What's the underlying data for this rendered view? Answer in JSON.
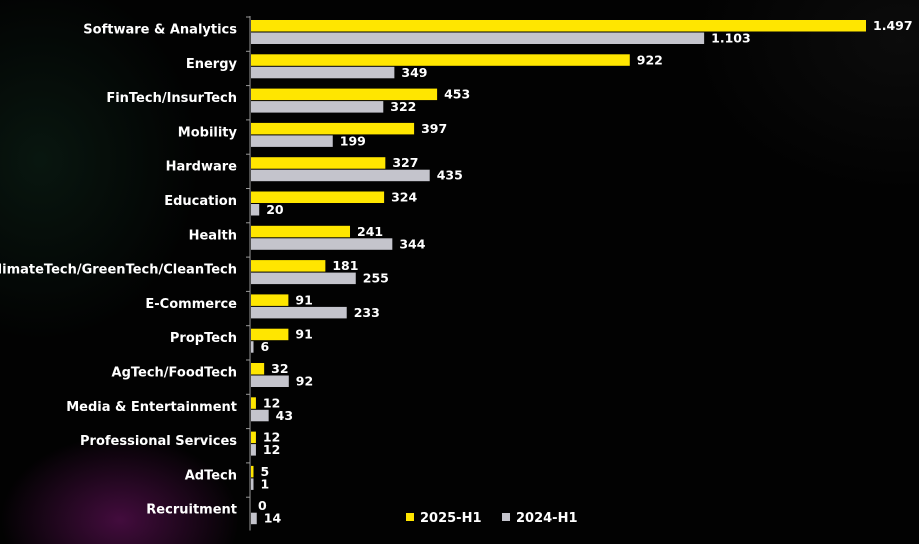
{
  "chart_data": {
    "type": "bar",
    "orientation": "horizontal",
    "categories": [
      "Software & Analytics",
      "Energy",
      "FinTech/InsurTech",
      "Mobility",
      "Hardware",
      "Education",
      "Health",
      "ClimateTech/GreenTech/CleanTech",
      "E-Commerce",
      "PropTech",
      "AgTech/FoodTech",
      "Media & Entertainment",
      "Professional Services",
      "AdTech",
      "Recruitment"
    ],
    "series": [
      {
        "name": "2025-H1",
        "color": "#FFE600",
        "values": [
          1497,
          922,
          453,
          397,
          327,
          324,
          241,
          181,
          91,
          91,
          32,
          12,
          12,
          5,
          0
        ],
        "labels": [
          "1.497",
          "922",
          "453",
          "397",
          "327",
          "324",
          "241",
          "181",
          "91",
          "91",
          "32",
          "12",
          "12",
          "5",
          "0"
        ]
      },
      {
        "name": "2024-H1",
        "color": "#C4C4CC",
        "values": [
          1103,
          349,
          322,
          199,
          435,
          20,
          344,
          255,
          233,
          6,
          92,
          43,
          12,
          1,
          14
        ],
        "labels": [
          "1.103",
          "349",
          "322",
          "199",
          "435",
          "20",
          "344",
          "255",
          "233",
          "6",
          "92",
          "43",
          "12",
          "1",
          "14"
        ]
      }
    ],
    "legend_position": "bottom-center",
    "grid": false,
    "xlim": [
      0,
      1497
    ]
  }
}
